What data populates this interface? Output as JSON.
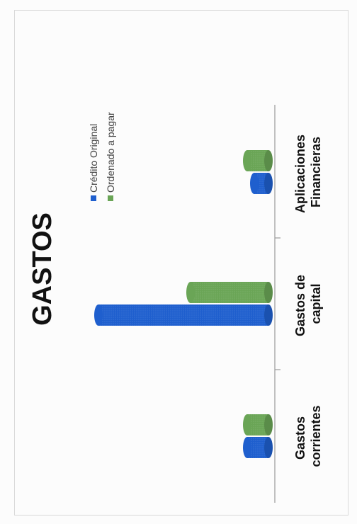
{
  "chart_data": {
    "type": "bar",
    "orientation": "rotated-90",
    "title": "GASTOS",
    "categories": [
      "Gastos corrientes",
      "Gastos de capital",
      "Aplicaciones Financieras"
    ],
    "category_lines": [
      [
        "Gastos",
        "corrientes"
      ],
      [
        "Gastos de",
        "capital"
      ],
      [
        "Aplicaciones",
        "Financieras"
      ]
    ],
    "series": [
      {
        "name": "Crédito Original",
        "color": "#1f5fce",
        "values": [
          30,
          240,
          20
        ]
      },
      {
        "name": "Ordenado a pagar",
        "color": "#6aa556",
        "values": [
          30,
          110,
          30
        ]
      }
    ],
    "ylim": [
      0,
      260
    ],
    "grid": false,
    "legend": "top"
  }
}
